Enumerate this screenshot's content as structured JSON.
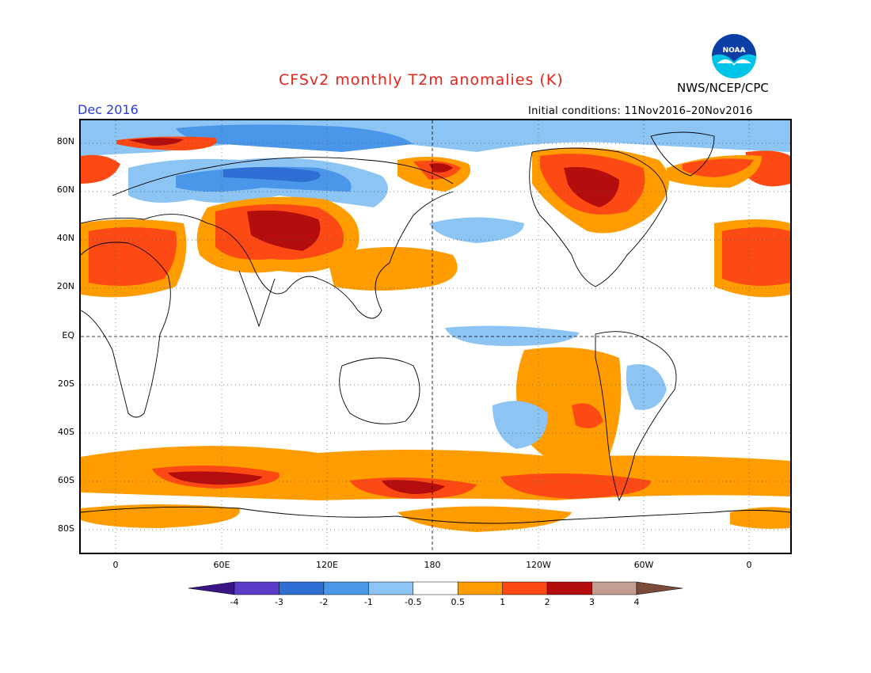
{
  "header": {
    "title": "CFSv2 monthly T2m anomalies (K)",
    "month": "Dec 2016",
    "initial_conditions": "Initial conditions: 11Nov2016–20Nov2016",
    "agency": "NWS/NCEP/CPC",
    "logo_text": "NOAA"
  },
  "axes": {
    "lat_labels": [
      "80N",
      "60N",
      "40N",
      "20N",
      "EQ",
      "20S",
      "40S",
      "60S",
      "80S"
    ],
    "lon_labels": [
      "0",
      "60E",
      "120E",
      "180",
      "120W",
      "60W",
      "0"
    ]
  },
  "colorbar": {
    "labels": [
      "-4",
      "-3",
      "-2",
      "-1",
      "-0.5",
      "0.5",
      "1",
      "2",
      "3",
      "4"
    ],
    "colors": [
      "#3a1585",
      "#5a3cc9",
      "#2f6fd4",
      "#4a97ea",
      "#8cc4f4",
      "#ffffff",
      "#ff9c00",
      "#fd4a14",
      "#b30d0d",
      "#c39d92",
      "#7a4a3a"
    ]
  },
  "colors": {
    "title": "#e8231a",
    "month": "#2a3cd6"
  }
}
